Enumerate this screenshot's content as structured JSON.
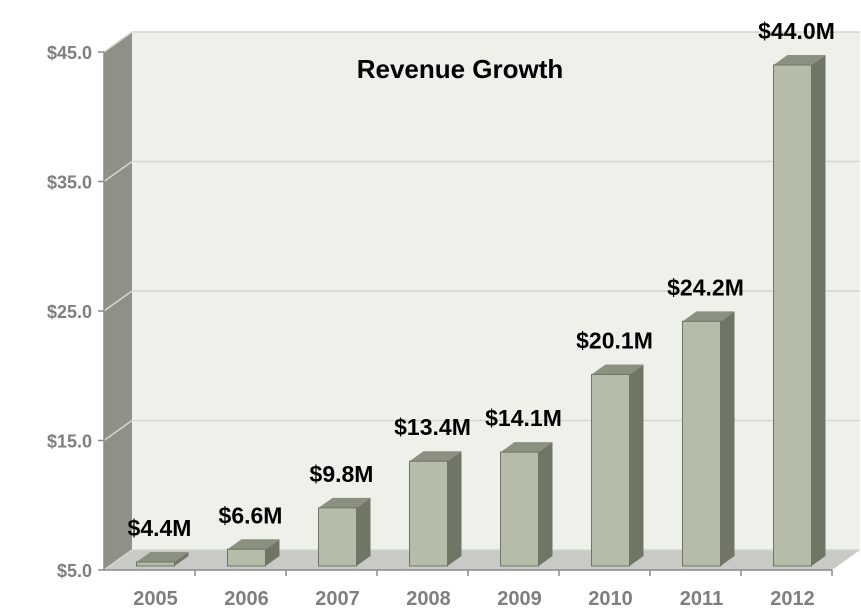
{
  "chart_data": {
    "type": "bar",
    "title": "Revenue Growth",
    "categories": [
      "2005",
      "2006",
      "2007",
      "2008",
      "2009",
      "2010",
      "2011",
      "2012"
    ],
    "values": [
      4.4,
      6.6,
      9.8,
      13.4,
      14.1,
      20.1,
      24.2,
      44.0
    ],
    "data_labels": [
      "$4.4M",
      "$6.6M",
      "$9.8M",
      "$13.4M",
      "$14.1M",
      "$20.1M",
      "$24.2M",
      "$44.0M"
    ],
    "yticks": [
      5,
      15,
      25,
      35,
      45
    ],
    "ytick_labels": [
      "$5.0",
      "$15.0",
      "$25.0",
      "$35.0",
      "$45.0"
    ],
    "ylim": [
      5,
      45
    ],
    "grid": true,
    "three_d": true,
    "colors": {
      "bar_front": "#b5bda9",
      "bar_side": "#707665",
      "bar_top": "#8a9180",
      "wall": "#eef0ea",
      "wall_side": "#8f9088",
      "floor": "#c9cac5",
      "grid": "#d4d6d0"
    }
  }
}
